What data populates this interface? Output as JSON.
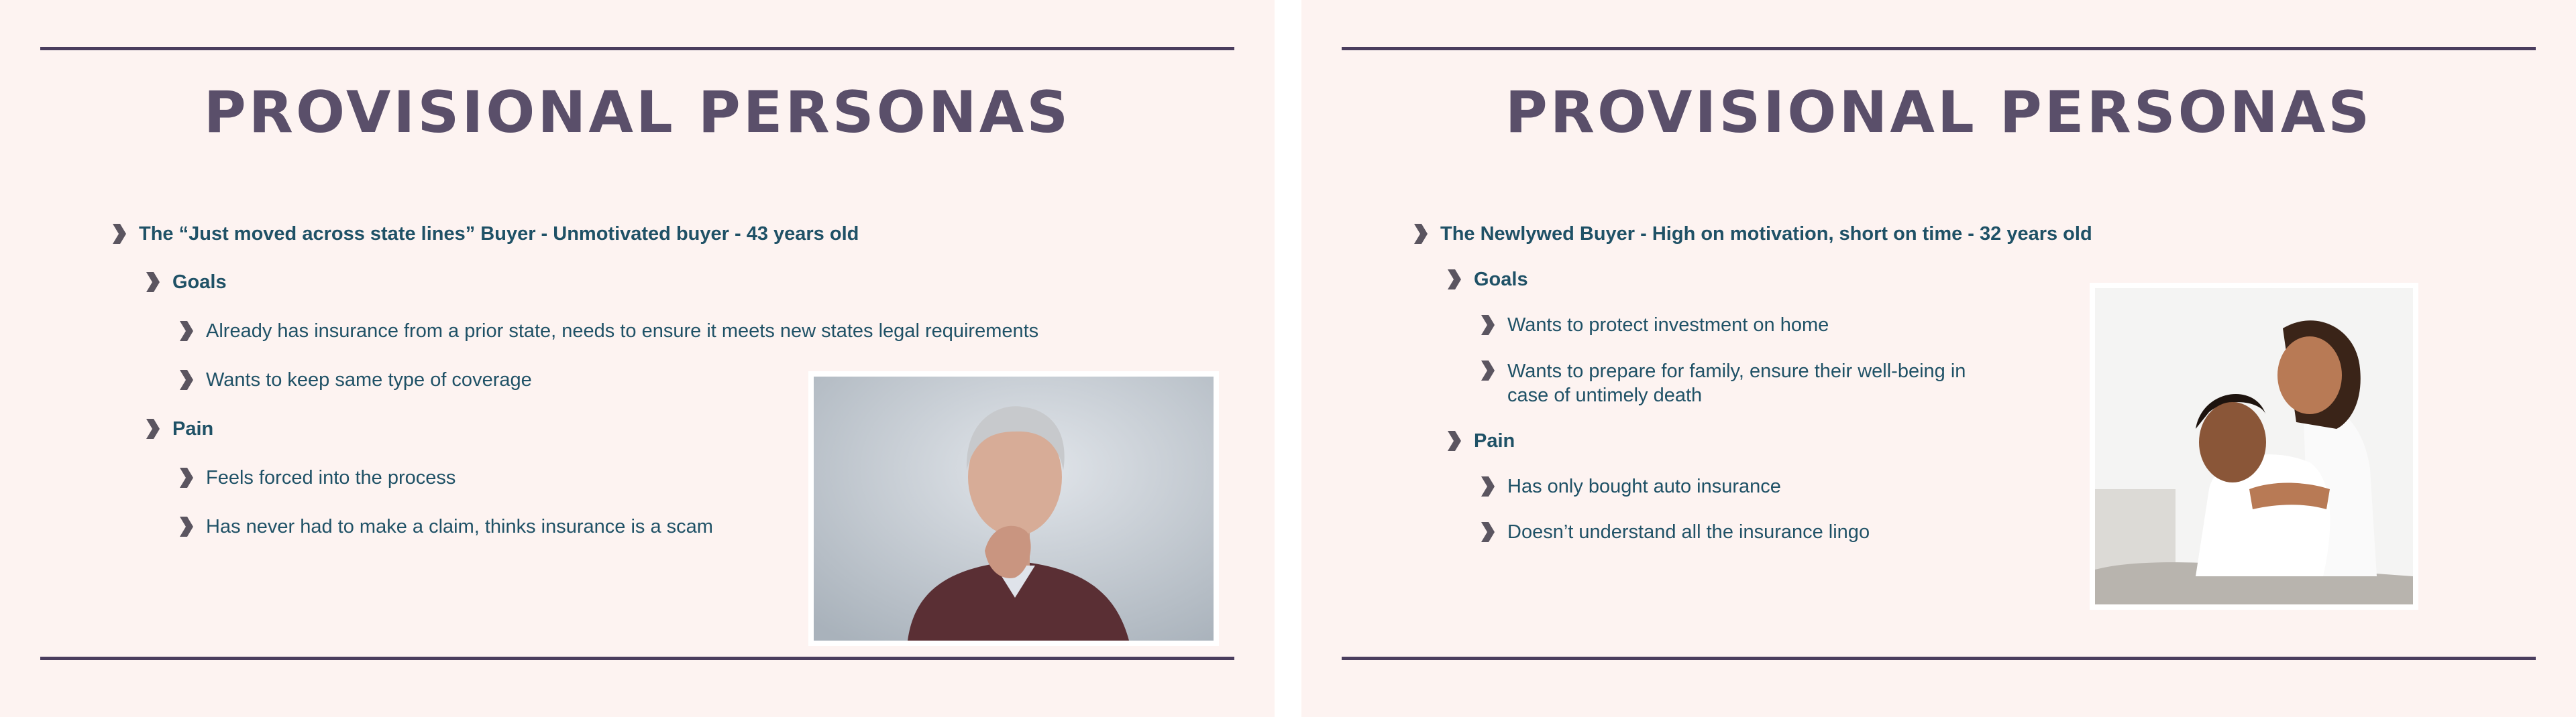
{
  "slides": [
    {
      "title": "PROVISIONAL PERSONAS",
      "persona": "The “Just moved across state lines” Buyer - Unmotivated buyer - 43 years old",
      "goals_label": "Goals",
      "goals": [
        "Already has insurance from a prior state, needs to ensure it meets new states legal requirements",
        "Wants to keep same type of coverage"
      ],
      "pain_label": "Pain",
      "pains": [
        "Feels forced into the process",
        "Has never had to make a claim, thinks insurance is a scam"
      ]
    },
    {
      "title": "PROVISIONAL PERSONAS",
      "persona": "The Newlywed Buyer - High on motivation, short on time - 32 years old",
      "goals_label": "Goals",
      "goals": [
        "Wants to protect investment on home",
        "Wants to prepare for family, ensure their well-being in case of untimely death"
      ],
      "pain_label": "Pain",
      "pains": [
        "Has only bought auto insurance",
        "Doesn’t understand all the insurance lingo"
      ]
    }
  ],
  "colors": {
    "background": "#fdf3f1",
    "rule": "#4a3d5e",
    "title": "#5a4f6a",
    "text": "#1f5166",
    "chevron": "#5b5560"
  }
}
